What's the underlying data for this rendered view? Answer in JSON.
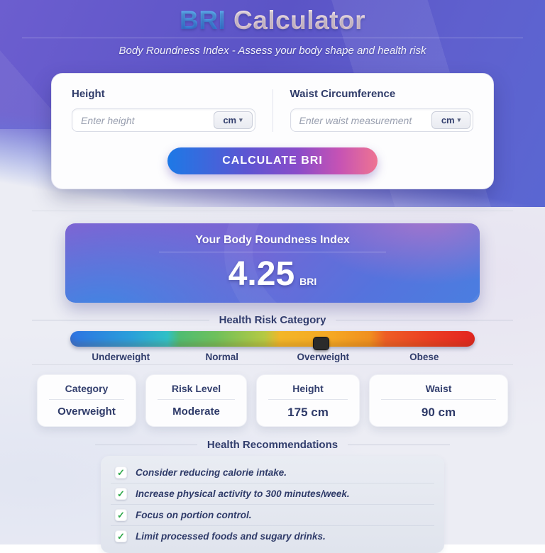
{
  "header": {
    "title_primary": "BRI",
    "title_secondary": "Calculator",
    "subtitle": "Body Roundness Index - Assess your body shape and health risk"
  },
  "form": {
    "height_label": "Height",
    "height_placeholder": "Enter height",
    "height_unit": "cm",
    "waist_label": "Waist Circumference",
    "waist_placeholder": "Enter waist measurement",
    "waist_unit": "cm",
    "unit_caret": "▾",
    "calculate_label": "CALCULATE BRI"
  },
  "result": {
    "title": "Your Body Roundness Index",
    "value": "4.25",
    "unit": "BRI"
  },
  "risk_scale": {
    "heading": "Health Risk Category",
    "categories": [
      "Underweight",
      "Normal",
      "Overweight",
      "Obese"
    ],
    "marker_position_pct": 61.9,
    "marker_style": "left:61.9%",
    "colors": {
      "underweight": "#2e73e2",
      "normal": "#4fbc72",
      "overweight": "#f3b628",
      "obese": "#e32420",
      "marker": "#2b2b2b"
    }
  },
  "stats": [
    {
      "label": "Category",
      "value": "Overweight"
    },
    {
      "label": "Risk Level",
      "value": "Moderate"
    },
    {
      "label": "Height",
      "value": "175 cm"
    },
    {
      "label": "Waist",
      "value": "90 cm"
    }
  ],
  "recommendations": {
    "heading": "Health Recommendations",
    "check_icon": "✓",
    "check_color": "#2ea84a",
    "items": [
      "Consider reducing calorie intake.",
      "Increase physical activity to 300 minutes/week.",
      "Focus on portion control.",
      "Limit processed foods and sugary drinks."
    ]
  },
  "colors": {
    "header_gradient_start": "#6c5ecf",
    "header_gradient_end": "#5a67d2",
    "button_gradient_start": "#1d79e6",
    "button_gradient_end": "#ee7492",
    "result_gradient_start": "#8a5ed0",
    "result_gradient_end": "#4a7ee0",
    "navy_text": "#2f3b69",
    "page_background": "#ecedf4"
  }
}
